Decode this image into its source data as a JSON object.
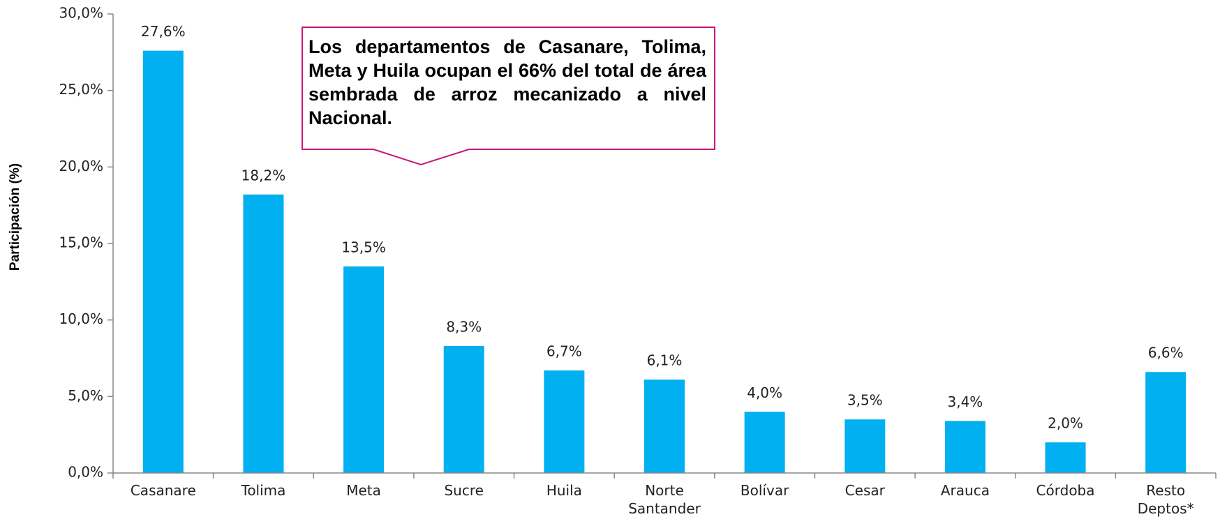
{
  "chart_data": {
    "type": "bar",
    "y_label": "Participación (%)",
    "annotation": "Los departamentos de Casanare, Tolima, Meta y Huila ocupan el 66% del total de área sembrada de arroz mecanizado a nivel Nacional.",
    "categories": [
      "Casanare",
      "Tolima",
      "Meta",
      "Sucre",
      "Huila",
      "Norte Santander",
      "Bolívar",
      "Cesar",
      "Arauca",
      "Córdoba",
      "Resto Deptos*"
    ],
    "values": [
      27.6,
      18.2,
      13.5,
      8.3,
      6.7,
      6.1,
      4.0,
      3.5,
      3.4,
      2.0,
      6.6
    ],
    "value_labels": [
      "27,6%",
      "18,2%",
      "13,5%",
      "8,3%",
      "6,7%",
      "6,1%",
      "4,0%",
      "3,5%",
      "3,4%",
      "2,0%",
      "6,6%"
    ],
    "color": "#00b0f0",
    "ylim": [
      0,
      30
    ],
    "yticks": [
      {
        "value": 0,
        "label": "0,0%"
      },
      {
        "value": 5,
        "label": "5,0%"
      },
      {
        "value": 10,
        "label": "10,0%"
      },
      {
        "value": 15,
        "label": "15,0%"
      },
      {
        "value": 20,
        "label": "20,0%"
      },
      {
        "value": 25,
        "label": "25,0%"
      },
      {
        "value": 30,
        "label": "30,0%"
      }
    ]
  }
}
